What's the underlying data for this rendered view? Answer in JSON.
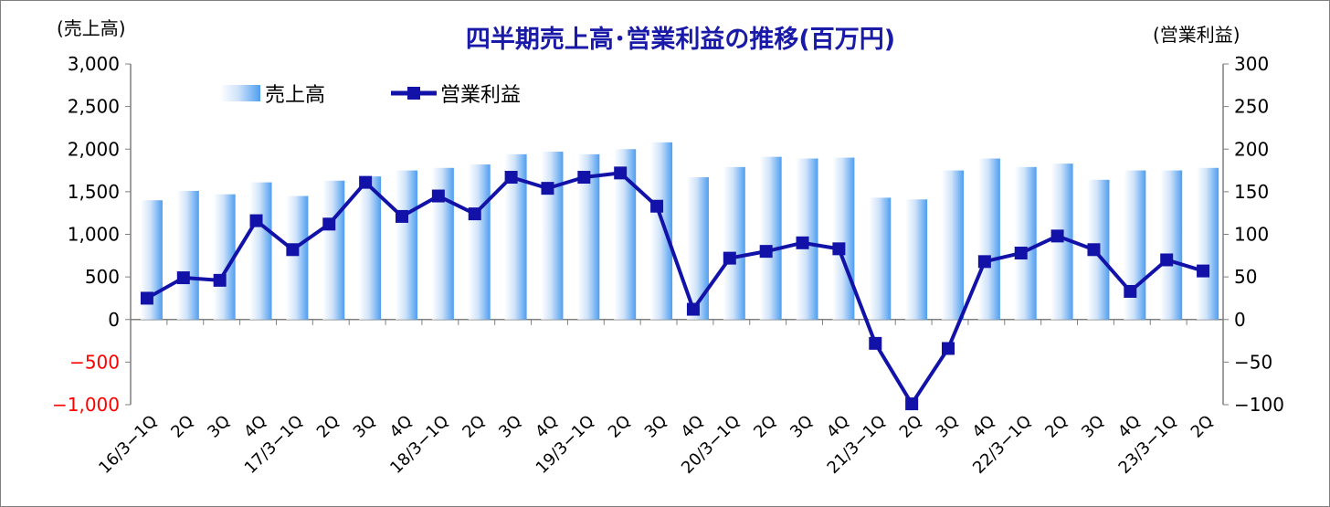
{
  "chart_data": {
    "type": "bar+line",
    "title": "四半期売上高･営業利益の推移(百万円)",
    "y_left_label": "(売上高)",
    "y_right_label": "(営業利益)",
    "y_left_lim": [
      -1000,
      3000
    ],
    "y_right_lim": [
      -100,
      300
    ],
    "y_left_ticks": [
      "3,000",
      "2,500",
      "2,000",
      "1,500",
      "1,000",
      "500",
      "0",
      "−500",
      "−1,000"
    ],
    "y_right_ticks": [
      "300",
      "250",
      "200",
      "150",
      "100",
      "50",
      "0",
      "−50",
      "−100"
    ],
    "categories": [
      "16/3−1Q",
      "2Q",
      "3Q",
      "4Q",
      "17/3−1Q",
      "2Q",
      "3Q",
      "4Q",
      "18/3−1Q",
      "2Q",
      "3Q",
      "4Q",
      "19/3−1Q",
      "2Q",
      "3Q",
      "4Q",
      "20/3−1Q",
      "2Q",
      "3Q",
      "4Q",
      "21/3−1Q",
      "2Q",
      "3Q",
      "4Q",
      "22/3−1Q",
      "2Q",
      "3Q",
      "4Q",
      "23/3−1Q",
      "2Q"
    ],
    "series": [
      {
        "name": "売上高",
        "kind": "bar",
        "axis": "left",
        "values": [
          1400,
          1510,
          1470,
          1610,
          1450,
          1630,
          1680,
          1750,
          1780,
          1820,
          1940,
          1970,
          1940,
          2000,
          2080,
          1670,
          1790,
          1910,
          1890,
          1900,
          1430,
          1410,
          1750,
          1890,
          1790,
          1830,
          1640,
          1750,
          1750,
          1780
        ]
      },
      {
        "name": "営業利益",
        "kind": "line",
        "axis": "right",
        "values": [
          25,
          49,
          46,
          116,
          82,
          112,
          161,
          121,
          145,
          124,
          167,
          154,
          167,
          172,
          133,
          12,
          72,
          80,
          90,
          83,
          -28,
          -99,
          -34,
          68,
          78,
          98,
          82,
          33,
          70,
          57
        ]
      }
    ],
    "legend_position": "top-left",
    "colors": {
      "bar_light": "#ffffff",
      "bar_dark": "#4f9ef0",
      "line": "#1212a8",
      "axis": "#7f7f7f",
      "negative_tick": "#ff0000"
    }
  }
}
